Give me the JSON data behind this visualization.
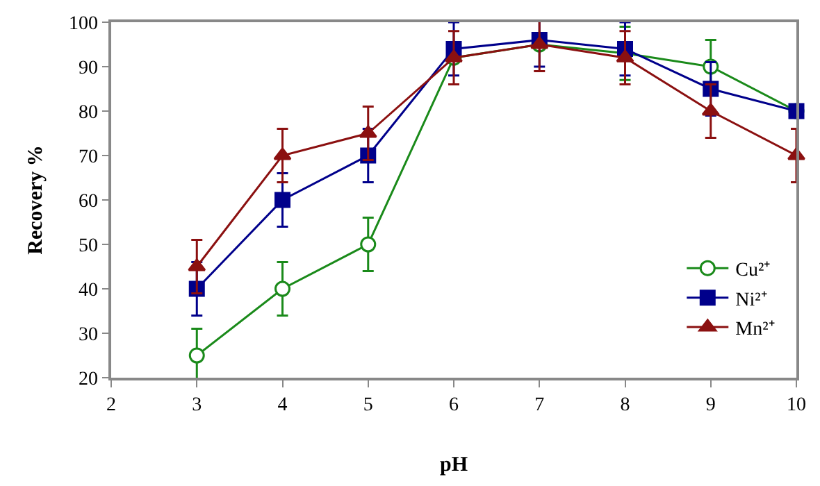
{
  "chart_data": {
    "type": "line",
    "xlabel": "pH",
    "ylabel": "Recovery %",
    "x": [
      3,
      4,
      5,
      6,
      7,
      8,
      9,
      10
    ],
    "series": [
      {
        "name": "Cu²⁺",
        "color": "#1a8a1a",
        "marker": "circle",
        "values": [
          25,
          40,
          50,
          92,
          95,
          93,
          90,
          80
        ],
        "errors": [
          6,
          6,
          6,
          null,
          null,
          6,
          6,
          null
        ]
      },
      {
        "name": "Ni²⁺",
        "color": "#00008b",
        "marker": "square",
        "values": [
          40,
          60,
          70,
          94,
          96,
          94,
          85,
          80
        ],
        "errors": [
          6,
          6,
          6,
          6,
          6,
          6,
          6,
          null
        ]
      },
      {
        "name": "Mn²⁺",
        "color": "#8b1010",
        "marker": "triangle",
        "values": [
          45,
          70,
          75,
          92,
          95,
          92,
          80,
          70
        ],
        "errors": [
          6,
          6,
          6,
          6,
          6,
          6,
          6,
          6
        ]
      }
    ],
    "xlim": [
      2,
      10
    ],
    "xticks": [
      2,
      3,
      4,
      5,
      6,
      7,
      8,
      9,
      10
    ],
    "ylim": [
      20,
      100
    ],
    "yticks": [
      20,
      30,
      40,
      50,
      60,
      70,
      80,
      90,
      100
    ],
    "legend": "bottom right"
  }
}
